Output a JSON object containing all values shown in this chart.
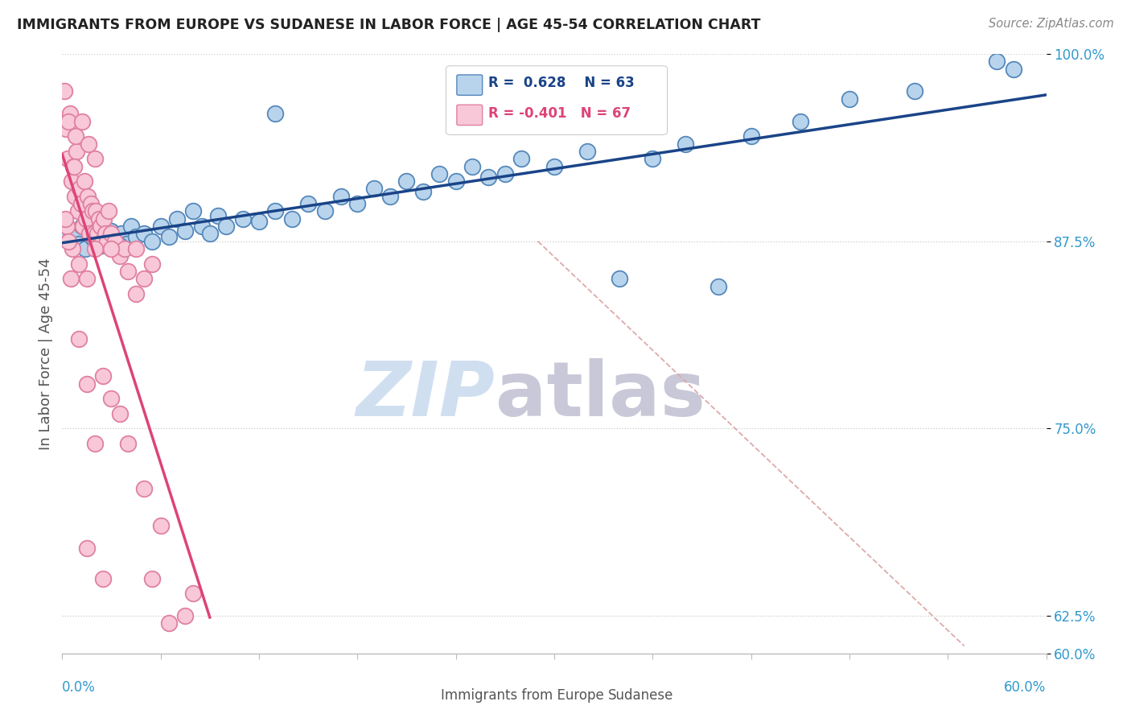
{
  "title": "IMMIGRANTS FROM EUROPE VS SUDANESE IN LABOR FORCE | AGE 45-54 CORRELATION CHART",
  "source_text": "Source: ZipAtlas.com",
  "ylabel": "In Labor Force | Age 45-54",
  "xmin": 0.0,
  "xmax": 60.0,
  "ymin": 60.0,
  "ymax": 100.0,
  "watermark_zip": "ZIP",
  "watermark_atlas": "atlas",
  "legend_blue_label": "Immigrants from Europe",
  "legend_pink_label": "Sudanese",
  "R_blue": 0.628,
  "N_blue": 63,
  "R_pink": -0.401,
  "N_pink": 67,
  "blue_color": "#b8d4ec",
  "blue_edge_color": "#5588bb",
  "pink_color": "#f8c8d8",
  "pink_edge_color": "#e080a0",
  "blue_line_color": "#1a4488",
  "pink_line_color": "#dd4477",
  "ref_line_color": "#ddaaaa",
  "grid_color": "#cccccc",
  "title_color": "#222222",
  "source_color": "#888888",
  "axis_label_color": "#3399cc",
  "ylabel_color": "#555555",
  "blue_dots": [
    [
      0.3,
      87.8
    ],
    [
      0.5,
      88.2
    ],
    [
      0.7,
      87.5
    ],
    [
      0.9,
      88.0
    ],
    [
      1.0,
      87.3
    ],
    [
      1.2,
      88.5
    ],
    [
      1.4,
      87.0
    ],
    [
      1.6,
      88.3
    ],
    [
      1.8,
      87.8
    ],
    [
      2.0,
      87.5
    ],
    [
      2.2,
      88.8
    ],
    [
      2.4,
      87.2
    ],
    [
      2.6,
      88.0
    ],
    [
      2.8,
      87.5
    ],
    [
      3.0,
      88.2
    ],
    [
      3.3,
      87.5
    ],
    [
      3.6,
      88.0
    ],
    [
      3.9,
      87.3
    ],
    [
      4.2,
      88.5
    ],
    [
      4.5,
      87.8
    ],
    [
      5.0,
      88.0
    ],
    [
      5.5,
      87.5
    ],
    [
      6.0,
      88.5
    ],
    [
      6.5,
      87.8
    ],
    [
      7.0,
      89.0
    ],
    [
      7.5,
      88.2
    ],
    [
      8.0,
      89.5
    ],
    [
      8.5,
      88.5
    ],
    [
      9.0,
      88.0
    ],
    [
      9.5,
      89.2
    ],
    [
      10.0,
      88.5
    ],
    [
      11.0,
      89.0
    ],
    [
      12.0,
      88.8
    ],
    [
      13.0,
      89.5
    ],
    [
      14.0,
      89.0
    ],
    [
      15.0,
      90.0
    ],
    [
      16.0,
      89.5
    ],
    [
      17.0,
      90.5
    ],
    [
      18.0,
      90.0
    ],
    [
      19.0,
      91.0
    ],
    [
      20.0,
      90.5
    ],
    [
      21.0,
      91.5
    ],
    [
      22.0,
      90.8
    ],
    [
      23.0,
      92.0
    ],
    [
      24.0,
      91.5
    ],
    [
      25.0,
      92.5
    ],
    [
      26.0,
      91.8
    ],
    [
      27.0,
      92.0
    ],
    [
      28.0,
      93.0
    ],
    [
      30.0,
      92.5
    ],
    [
      32.0,
      93.5
    ],
    [
      34.0,
      85.0
    ],
    [
      36.0,
      93.0
    ],
    [
      38.0,
      94.0
    ],
    [
      40.0,
      84.5
    ],
    [
      42.0,
      94.5
    ],
    [
      45.0,
      95.5
    ],
    [
      48.0,
      97.0
    ],
    [
      52.0,
      97.5
    ],
    [
      57.0,
      99.5
    ],
    [
      58.0,
      99.0
    ],
    [
      13.0,
      96.0
    ],
    [
      3.5,
      87.2
    ]
  ],
  "pink_dots": [
    [
      0.15,
      97.5
    ],
    [
      0.25,
      95.0
    ],
    [
      0.35,
      93.0
    ],
    [
      0.45,
      96.0
    ],
    [
      0.55,
      91.5
    ],
    [
      0.65,
      92.5
    ],
    [
      0.75,
      90.5
    ],
    [
      0.85,
      93.5
    ],
    [
      0.95,
      89.5
    ],
    [
      1.05,
      91.0
    ],
    [
      1.15,
      90.0
    ],
    [
      1.25,
      88.5
    ],
    [
      1.35,
      91.5
    ],
    [
      1.45,
      89.0
    ],
    [
      1.55,
      90.5
    ],
    [
      1.65,
      88.0
    ],
    [
      1.75,
      90.0
    ],
    [
      1.85,
      89.5
    ],
    [
      1.95,
      88.0
    ],
    [
      2.05,
      89.5
    ],
    [
      2.15,
      88.0
    ],
    [
      2.25,
      89.0
    ],
    [
      2.35,
      88.5
    ],
    [
      2.45,
      87.5
    ],
    [
      2.55,
      89.0
    ],
    [
      2.65,
      88.0
    ],
    [
      2.75,
      87.5
    ],
    [
      2.85,
      89.5
    ],
    [
      3.0,
      88.0
    ],
    [
      3.2,
      87.5
    ],
    [
      3.5,
      86.5
    ],
    [
      3.8,
      87.0
    ],
    [
      4.0,
      85.5
    ],
    [
      4.5,
      87.0
    ],
    [
      5.0,
      85.0
    ],
    [
      0.4,
      95.5
    ],
    [
      0.8,
      94.5
    ],
    [
      1.2,
      95.5
    ],
    [
      1.6,
      94.0
    ],
    [
      2.0,
      93.0
    ],
    [
      0.3,
      88.5
    ],
    [
      0.6,
      87.0
    ],
    [
      1.0,
      86.0
    ],
    [
      1.5,
      85.0
    ],
    [
      2.0,
      87.0
    ],
    [
      2.5,
      78.5
    ],
    [
      3.0,
      77.0
    ],
    [
      3.5,
      76.0
    ],
    [
      4.0,
      74.0
    ],
    [
      5.0,
      71.0
    ],
    [
      5.5,
      65.0
    ],
    [
      0.2,
      89.0
    ],
    [
      0.4,
      87.5
    ],
    [
      6.0,
      68.5
    ],
    [
      0.5,
      85.0
    ],
    [
      1.0,
      81.0
    ],
    [
      1.5,
      78.0
    ],
    [
      2.0,
      74.0
    ],
    [
      2.5,
      65.0
    ],
    [
      0.7,
      92.5
    ],
    [
      3.0,
      87.0
    ],
    [
      4.5,
      84.0
    ],
    [
      6.5,
      62.0
    ],
    [
      1.5,
      67.0
    ],
    [
      7.5,
      62.5
    ],
    [
      5.5,
      86.0
    ],
    [
      8.0,
      64.0
    ]
  ]
}
